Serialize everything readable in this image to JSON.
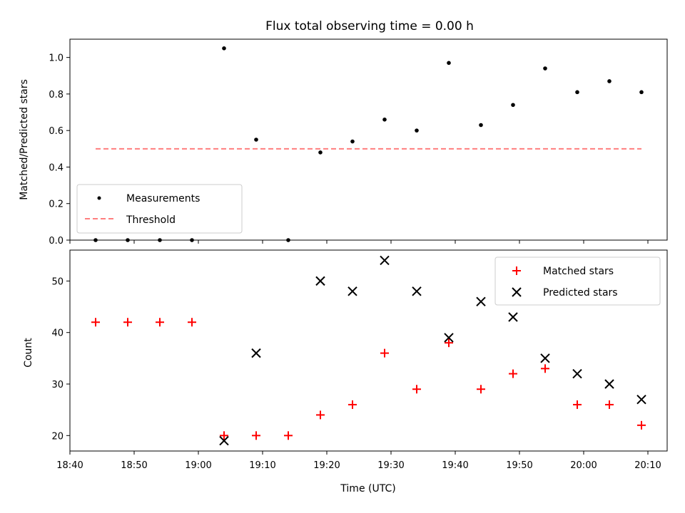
{
  "chart_data": [
    {
      "type": "scatter",
      "title": "Flux total observing time = 0.00 h",
      "xlabel": "",
      "ylabel": "Matched/Predicted stars",
      "ylim": [
        0,
        1.1
      ],
      "yticks": [
        "0.0",
        "0.2",
        "0.4",
        "0.6",
        "0.8",
        "1.0"
      ],
      "legend_position": "bottom-left",
      "series": [
        {
          "name": "Measurements",
          "kind": "points",
          "color": "#000000",
          "x": [
            "18:44",
            "18:49",
            "18:54",
            "18:59",
            "19:04",
            "19:09",
            "19:14",
            "19:19",
            "19:24",
            "19:29",
            "19:34",
            "19:39",
            "19:44",
            "19:49",
            "19:54",
            "19:59",
            "20:04",
            "20:09"
          ],
          "y": [
            0.0,
            0.0,
            0.0,
            0.0,
            1.05,
            0.55,
            0.0,
            0.48,
            0.54,
            0.66,
            0.6,
            0.97,
            0.63,
            0.74,
            0.94,
            0.81,
            0.87,
            0.81
          ]
        },
        {
          "name": "Threshold",
          "kind": "dashed-line",
          "color": "#ff7f7f",
          "x": [
            "18:44",
            "20:09"
          ],
          "y": [
            0.5,
            0.5
          ]
        }
      ]
    },
    {
      "type": "scatter",
      "title": "",
      "xlabel": "Time (UTC)",
      "ylabel": "Count",
      "ylim": [
        17,
        56
      ],
      "yticks": [
        "20",
        "30",
        "40",
        "50"
      ],
      "legend_position": "top-right",
      "series": [
        {
          "name": "Matched stars",
          "kind": "plus",
          "color": "#ff0000",
          "x": [
            "18:44",
            "18:49",
            "18:54",
            "18:59",
            "19:04",
            "19:09",
            "19:14",
            "19:19",
            "19:24",
            "19:29",
            "19:34",
            "19:39",
            "19:44",
            "19:49",
            "19:54",
            "19:59",
            "20:04",
            "20:09"
          ],
          "y": [
            42,
            42,
            42,
            42,
            20,
            20,
            20,
            24,
            26,
            36,
            29,
            38,
            29,
            32,
            33,
            26,
            26,
            22
          ]
        },
        {
          "name": "Predicted stars",
          "kind": "cross",
          "color": "#000000",
          "x": [
            "19:04",
            "19:09",
            "19:19",
            "19:24",
            "19:29",
            "19:34",
            "19:39",
            "19:44",
            "19:49",
            "19:54",
            "19:59",
            "20:04",
            "20:09"
          ],
          "y": [
            19,
            36,
            50,
            48,
            54,
            48,
            39,
            46,
            43,
            35,
            32,
            30,
            27
          ]
        }
      ]
    }
  ],
  "x_axis": {
    "range": [
      "18:40",
      "20:13"
    ],
    "ticks": [
      "18:40",
      "18:50",
      "19:00",
      "19:10",
      "19:20",
      "19:30",
      "19:40",
      "19:50",
      "20:00",
      "20:10"
    ]
  }
}
